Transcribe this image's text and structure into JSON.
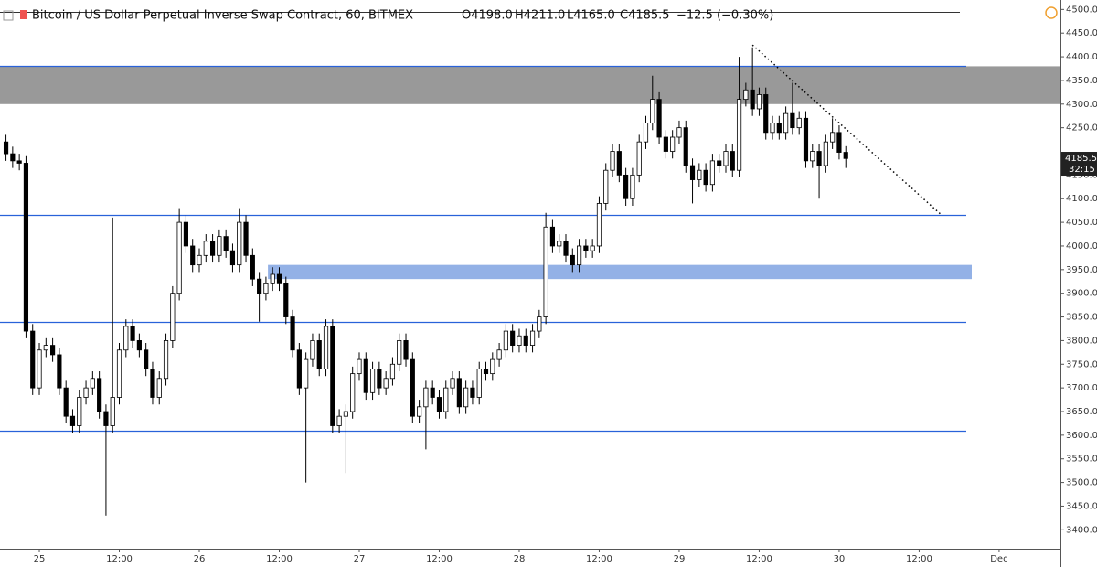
{
  "chart_data": {
    "type": "candlestick",
    "title": "Bitcoin / US Dollar Perpetual Inverse Swap Contract, 60, BITMEX",
    "ohlc_labels": [
      "O4198.0",
      "H4211.0",
      "L4165.0",
      "C4185.5",
      "−12.5 (−0.30%)"
    ],
    "last_price": {
      "value": 4185.5,
      "label": "4185.5"
    },
    "countdown": "32:15",
    "series": {
      "open": [
        4220,
        4195,
        4180,
        4175,
        3820,
        3700,
        3780,
        3790,
        3770,
        3700,
        3640,
        3620,
        3680,
        3700,
        3720,
        3650,
        3620,
        3680,
        3780,
        3830,
        3800,
        3780,
        3740,
        3680,
        3720,
        3800,
        3900,
        4050,
        4000,
        3960,
        3980,
        4010,
        3980,
        4020,
        3990,
        3960,
        4050,
        3980,
        3930,
        3900,
        3920,
        3940,
        3920,
        3850,
        3780,
        3700,
        3760,
        3800,
        3740,
        3830,
        3620,
        3640,
        3650,
        3730,
        3760,
        3690,
        3740,
        3700,
        3720,
        3750,
        3800,
        3760,
        3640,
        3660,
        3700,
        3680,
        3650,
        3700,
        3720,
        3660,
        3700,
        3680,
        3740,
        3730,
        3760,
        3780,
        3820,
        3790,
        3810,
        3790,
        3820,
        3850,
        4040,
        4000,
        4010,
        3980,
        3960,
        4000,
        3990,
        4000,
        4090,
        4160,
        4200,
        4150,
        4100,
        4150,
        4220,
        4260,
        4310,
        4230,
        4200,
        4230,
        4250,
        4170,
        4140,
        4160,
        4130,
        4180,
        4170,
        4200,
        4160,
        4310,
        4330,
        4290,
        4320,
        4240,
        4260,
        4240,
        4280,
        4250,
        4270,
        4180,
        4200,
        4170,
        4220,
        4240,
        4198
      ],
      "high": [
        4235,
        4210,
        4195,
        4190,
        3835,
        3795,
        3805,
        3805,
        3785,
        3715,
        3655,
        3695,
        3715,
        3735,
        3735,
        3665,
        4060,
        3795,
        3845,
        3845,
        3815,
        3795,
        3755,
        3735,
        3815,
        3915,
        4080,
        4065,
        4015,
        3995,
        4025,
        4025,
        4035,
        4035,
        4005,
        4080,
        4065,
        3995,
        3945,
        3935,
        3955,
        3955,
        3935,
        3865,
        3795,
        3775,
        3815,
        3815,
        3845,
        3845,
        3655,
        3665,
        3745,
        3775,
        3775,
        3755,
        3755,
        3735,
        3765,
        3815,
        3815,
        3775,
        3675,
        3715,
        3715,
        3695,
        3715,
        3735,
        3735,
        3715,
        3715,
        3755,
        3755,
        3775,
        3795,
        3835,
        3835,
        3825,
        3825,
        3835,
        3865,
        4070,
        4055,
        4025,
        4025,
        3995,
        4015,
        4015,
        4015,
        4105,
        4175,
        4215,
        4215,
        4165,
        4165,
        4235,
        4275,
        4360,
        4325,
        4245,
        4245,
        4265,
        4265,
        4185,
        4175,
        4175,
        4195,
        4195,
        4215,
        4215,
        4400,
        4345,
        4420,
        4335,
        4335,
        4275,
        4275,
        4295,
        4345,
        4285,
        4285,
        4215,
        4215,
        4235,
        4270,
        4255,
        4211
      ],
      "low": [
        4180,
        4165,
        4160,
        3805,
        3685,
        3685,
        3765,
        3755,
        3685,
        3625,
        3605,
        3605,
        3665,
        3685,
        3635,
        3430,
        3605,
        3665,
        3765,
        3785,
        3765,
        3725,
        3665,
        3665,
        3705,
        3785,
        3885,
        3985,
        3945,
        3945,
        3965,
        3965,
        3965,
        3975,
        3945,
        3945,
        3965,
        3915,
        3840,
        3885,
        3905,
        3905,
        3835,
        3765,
        3685,
        3500,
        3745,
        3725,
        3725,
        3605,
        3605,
        3520,
        3635,
        3715,
        3675,
        3675,
        3685,
        3685,
        3705,
        3735,
        3745,
        3625,
        3625,
        3570,
        3665,
        3635,
        3635,
        3685,
        3645,
        3645,
        3665,
        3665,
        3715,
        3715,
        3745,
        3765,
        3775,
        3775,
        3775,
        3775,
        3805,
        3835,
        3985,
        3985,
        3965,
        3945,
        3945,
        3975,
        3975,
        3985,
        4075,
        4145,
        4135,
        4085,
        4085,
        4135,
        4205,
        4245,
        4215,
        4185,
        4185,
        4215,
        4155,
        4090,
        4125,
        4115,
        4115,
        4155,
        4155,
        4145,
        4145,
        4295,
        4275,
        4275,
        4225,
        4225,
        4225,
        4225,
        4235,
        4235,
        4165,
        4165,
        4100,
        4155,
        4205,
        4183,
        4165
      ],
      "close": [
        4195,
        4180,
        4175,
        3820,
        3700,
        3780,
        3790,
        3770,
        3700,
        3640,
        3620,
        3680,
        3700,
        3720,
        3650,
        3620,
        3680,
        3780,
        3830,
        3800,
        3780,
        3740,
        3680,
        3720,
        3800,
        3900,
        4050,
        4000,
        3960,
        3980,
        4010,
        3980,
        4020,
        3990,
        3960,
        4050,
        3980,
        3930,
        3900,
        3920,
        3940,
        3920,
        3850,
        3780,
        3700,
        3760,
        3800,
        3740,
        3830,
        3620,
        3640,
        3650,
        3730,
        3760,
        3690,
        3740,
        3700,
        3720,
        3750,
        3800,
        3760,
        3640,
        3660,
        3700,
        3680,
        3650,
        3700,
        3720,
        3660,
        3700,
        3680,
        3740,
        3730,
        3760,
        3780,
        3820,
        3790,
        3810,
        3790,
        3820,
        3850,
        4040,
        4000,
        4010,
        3980,
        3960,
        4000,
        3990,
        4000,
        4090,
        4160,
        4200,
        4150,
        4100,
        4150,
        4220,
        4260,
        4310,
        4230,
        4200,
        4230,
        4250,
        4170,
        4140,
        4160,
        4130,
        4180,
        4170,
        4200,
        4160,
        4310,
        4330,
        4290,
        4320,
        4240,
        4260,
        4240,
        4280,
        4250,
        4270,
        4180,
        4200,
        4170,
        4220,
        4240,
        4198,
        4185
      ]
    },
    "up_color": "#ffffff",
    "down_color": "#000000",
    "wick_color": "#000000",
    "levels": [
      4380,
      4065,
      3840,
      3610
    ],
    "level_color": "#2962d9",
    "zones": [
      {
        "from": 4300,
        "to": 4380,
        "start": -0.9,
        "color": "#999999"
      },
      {
        "from": 3930,
        "to": 3960,
        "start": 39.3,
        "color": "#93b1e6"
      }
    ],
    "trendline": {
      "x": [
        112,
        140.4
      ],
      "y": [
        4425,
        4065
      ]
    },
    "xlim": [
      -0.9,
      158.2
    ],
    "ylim": [
      3360,
      4520
    ],
    "xticks": [
      {
        "value": 5,
        "label": "25"
      },
      {
        "value": 17,
        "label": "12:00"
      },
      {
        "value": 29,
        "label": "26"
      },
      {
        "value": 41,
        "label": "12:00"
      },
      {
        "value": 53,
        "label": "27"
      },
      {
        "value": 65,
        "label": "12:00"
      },
      {
        "value": 77,
        "label": "28"
      },
      {
        "value": 89,
        "label": "12:00"
      },
      {
        "value": 101,
        "label": "29"
      },
      {
        "value": 113,
        "label": "12:00"
      },
      {
        "value": 125,
        "label": "30"
      },
      {
        "value": 137,
        "label": "12:00"
      },
      {
        "value": 149,
        "label": "Dec"
      }
    ],
    "yticks": [
      {
        "value": 4500,
        "label": "4500.0"
      },
      {
        "value": 4450,
        "label": "4450.0"
      },
      {
        "value": 4400,
        "label": "4400.0"
      },
      {
        "value": 4350,
        "label": "4350.0"
      },
      {
        "value": 4300,
        "label": "4300.0"
      },
      {
        "value": 4250,
        "label": "4250.0"
      },
      {
        "value": 4150,
        "label": "4150.0"
      },
      {
        "value": 4100,
        "label": "4100.0"
      },
      {
        "value": 4050,
        "label": "4050.0"
      },
      {
        "value": 4000,
        "label": "4000.0"
      },
      {
        "value": 3950,
        "label": "3950.0"
      },
      {
        "value": 3900,
        "label": "3900.0"
      },
      {
        "value": 3850,
        "label": "3850.0"
      },
      {
        "value": 3800,
        "label": "3800.0"
      },
      {
        "value": 3750,
        "label": "3750.0"
      },
      {
        "value": 3700,
        "label": "3700.0"
      },
      {
        "value": 3650,
        "label": "3650.0"
      },
      {
        "value": 3600,
        "label": "3600.0"
      },
      {
        "value": 3550,
        "label": "3550.0"
      },
      {
        "value": 3500,
        "label": "3500.0"
      },
      {
        "value": 3450,
        "label": "3450.0"
      },
      {
        "value": 3400,
        "label": "3400.0"
      }
    ]
  }
}
